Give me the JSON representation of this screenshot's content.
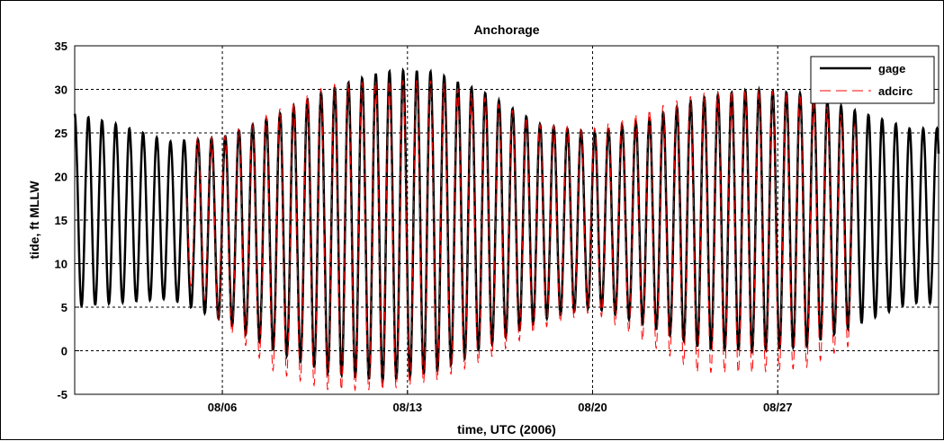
{
  "chart_data": {
    "type": "line",
    "title": "Anchorage",
    "xlabel": "time, UTC (2006)",
    "ylabel": "tide, ft MLLW",
    "xlim": [
      "2006-07-31T10:00",
      "2006-09-02T02:00"
    ],
    "ylim": [
      -5,
      35
    ],
    "yticks": [
      -5,
      0,
      5,
      10,
      15,
      20,
      25,
      30,
      35
    ],
    "xticks": [
      {
        "date": "2006-08-06",
        "label": "08/06"
      },
      {
        "date": "2006-08-13",
        "label": "08/13"
      },
      {
        "date": "2006-08-20",
        "label": "08/20"
      },
      {
        "date": "2006-08-27",
        "label": "08/27"
      }
    ],
    "grid": true,
    "legend_position": "top-right",
    "series": [
      {
        "name": "gage",
        "color": "#000000",
        "style": "solid",
        "start": "2006-07-31T10:00",
        "end": "2006-09-02T02:00",
        "x": [
          "07/31",
          "08/02",
          "08/04",
          "08/06",
          "08/08",
          "08/10",
          "08/12",
          "08/13",
          "08/14",
          "08/16",
          "08/18",
          "08/20",
          "08/22",
          "08/24",
          "08/26",
          "08/28",
          "08/30",
          "09/01"
        ],
        "high_water": [
          27.5,
          26.0,
          24.0,
          24.5,
          27.0,
          30.0,
          32.0,
          32.2,
          32.0,
          29.5,
          26.0,
          25.0,
          26.5,
          29.0,
          30.0,
          29.5,
          27.5,
          25.5
        ],
        "low_water": [
          5.0,
          5.5,
          6.0,
          3.5,
          0.0,
          -2.5,
          -3.5,
          -3.0,
          -2.5,
          0.5,
          3.5,
          5.0,
          3.0,
          0.5,
          0.0,
          0.5,
          3.0,
          5.5
        ]
      },
      {
        "name": "adcirc",
        "color": "#ff0000",
        "style": "dashed",
        "start": "2006-08-04T16:00",
        "end": "2006-08-30T00:00",
        "x": [
          "08/04",
          "08/06",
          "08/08",
          "08/10",
          "08/12",
          "08/13",
          "08/14",
          "08/16",
          "08/18",
          "08/20",
          "08/22",
          "08/24",
          "08/26",
          "08/28",
          "08/30"
        ],
        "high_water": [
          24.5,
          24.5,
          27.5,
          30.5,
          31.0,
          31.0,
          31.0,
          29.0,
          26.0,
          25.5,
          27.5,
          29.5,
          30.0,
          29.5,
          26.0
        ],
        "low_water": [
          10.5,
          3.0,
          -2.5,
          -4.5,
          -4.5,
          -4.0,
          -3.5,
          -1.0,
          2.5,
          4.5,
          1.0,
          -2.5,
          -2.5,
          -2.0,
          1.0
        ]
      }
    ]
  }
}
